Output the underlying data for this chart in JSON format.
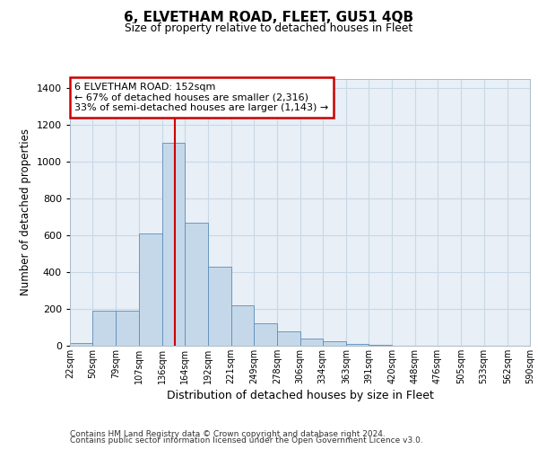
{
  "title1": "6, ELVETHAM ROAD, FLEET, GU51 4QB",
  "title2": "Size of property relative to detached houses in Fleet",
  "xlabel": "Distribution of detached houses by size in Fleet",
  "ylabel": "Number of detached properties",
  "bar_color": "#c5d8ea",
  "bar_edge_color": "#5b8db8",
  "grid_color": "#c8d8e4",
  "axes_bg_color": "#e8eff6",
  "fig_bg_color": "#ffffff",
  "vline_x": 152,
  "vline_color": "#cc0000",
  "annotation_title": "6 ELVETHAM ROAD: 152sqm",
  "annotation_line1": "← 67% of detached houses are smaller (2,316)",
  "annotation_line2": "33% of semi-detached houses are larger (1,143) →",
  "annotation_box_edgecolor": "#cc0000",
  "bin_edges": [
    22,
    50,
    79,
    107,
    136,
    164,
    192,
    221,
    249,
    278,
    306,
    334,
    363,
    391,
    420,
    448,
    476,
    505,
    533,
    562,
    590
  ],
  "bar_heights": [
    15,
    190,
    190,
    610,
    1100,
    670,
    430,
    220,
    120,
    80,
    40,
    25,
    10,
    5,
    2,
    1,
    0,
    0,
    0,
    0
  ],
  "ylim": [
    0,
    1450
  ],
  "yticks": [
    0,
    200,
    400,
    600,
    800,
    1000,
    1200,
    1400
  ],
  "footer1": "Contains HM Land Registry data © Crown copyright and database right 2024.",
  "footer2": "Contains public sector information licensed under the Open Government Licence v3.0."
}
